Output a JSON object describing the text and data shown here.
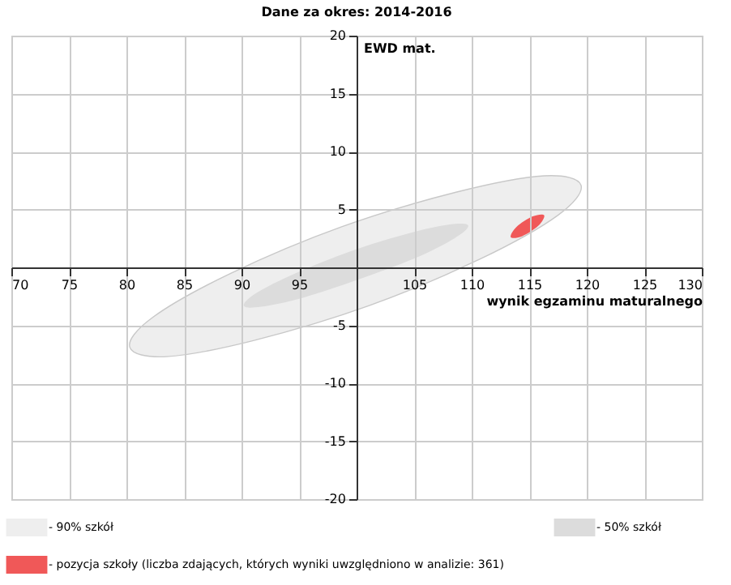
{
  "chart_data": {
    "type": "area",
    "title": "Dane za okres: 2014-2016",
    "xlabel": "wynik egzaminu maturalnego",
    "ylabel": "EWD mat.",
    "xlim": [
      70,
      130
    ],
    "ylim": [
      -20,
      20
    ],
    "xticks": [
      70,
      75,
      80,
      85,
      90,
      95,
      {
        "value": 100,
        "label": null
      },
      105,
      110,
      115,
      120,
      125,
      130
    ],
    "yticks": [
      -20,
      -15,
      -10,
      -5,
      {
        "value": 0,
        "label": null
      },
      5,
      10,
      15,
      20
    ],
    "grid": true,
    "legend": "bottom",
    "marker": "none",
    "series": [
      {
        "name": "- 90% szkół",
        "color": "#eeeeee",
        "x": [
          119.5,
          116.3,
          108.7,
          98.7,
          89.1,
          82.3,
          80.3,
          83.5,
          91.1,
          101.1,
          110.7,
          117.5
        ],
        "values": [
          7.1,
          7.9,
          6.5,
          3.5,
          -0.5,
          -4.3,
          -6.9,
          -7.7,
          -6.3,
          -3.3,
          0.7,
          4.5
        ]
      },
      {
        "name": "- 50% szkół",
        "color": "#dcdcdc",
        "x": [
          109.7,
          108.1,
          104.4,
          99.5,
          94.7,
          91.3,
          90.2,
          91.7,
          95.4,
          100.3,
          105.1,
          108.5
        ],
        "values": [
          3.6,
          3.7,
          2.9,
          1.4,
          -0.5,
          -2.2,
          -3.3,
          -3.4,
          -2.6,
          -1.0,
          0.8,
          2.5
        ]
      },
      {
        "name": "- pozycja szkoły (liczba zdających, których wyniki uwzględniono w analizie: 361)",
        "color": "#f05858",
        "x": [
          116.3,
          115.3,
          113.9,
          113.4,
          114.4,
          115.8
        ],
        "values": [
          4.5,
          4.4,
          3.5,
          2.6,
          2.7,
          3.6
        ]
      }
    ]
  }
}
